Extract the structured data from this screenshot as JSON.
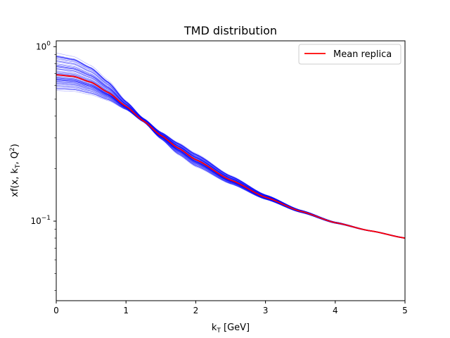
{
  "chart_data": {
    "type": "line",
    "title": "TMD distribution",
    "xlabel": "k_T [GeV]",
    "ylabel": "xf(x, k_T, Q^2)",
    "xlim": [
      0,
      5
    ],
    "ylim": [
      0.035,
      1.08
    ],
    "yscale": "log",
    "grid": false,
    "legend": {
      "placement": "top-right",
      "entries": [
        "Mean replica"
      ]
    },
    "x_ticks": [
      "0",
      "1",
      "2",
      "3",
      "4",
      "5"
    ],
    "y_ticks": [
      "10^0",
      "10^-1"
    ],
    "colors": {
      "replicas": "#0000ff",
      "mean": "#ff0000"
    },
    "series": [
      {
        "name": "Mean replica",
        "x": [
          0,
          0.25,
          0.5,
          0.75,
          1.0,
          1.25,
          1.5,
          1.75,
          2.0,
          2.5,
          3.0,
          3.5,
          4.0,
          4.5,
          5.0
        ],
        "values": [
          0.69,
          0.675,
          0.625,
          0.545,
          0.455,
          0.375,
          0.31,
          0.262,
          0.225,
          0.172,
          0.137,
          0.114,
          0.098,
          0.088,
          0.08
        ]
      }
    ],
    "replica_band": {
      "x": [
        0,
        0.25,
        0.5,
        0.75,
        1.0,
        1.25,
        1.5,
        1.75,
        2.0,
        2.5,
        3.0,
        3.5,
        4.0,
        4.5,
        5.0
      ],
      "low": [
        0.56,
        0.555,
        0.53,
        0.49,
        0.435,
        0.37,
        0.295,
        0.24,
        0.205,
        0.163,
        0.133,
        0.112,
        0.097,
        0.0875,
        0.0795
      ],
      "high": [
        0.92,
        0.88,
        0.78,
        0.64,
        0.49,
        0.39,
        0.325,
        0.282,
        0.245,
        0.183,
        0.142,
        0.116,
        0.099,
        0.0885,
        0.0805
      ]
    }
  }
}
